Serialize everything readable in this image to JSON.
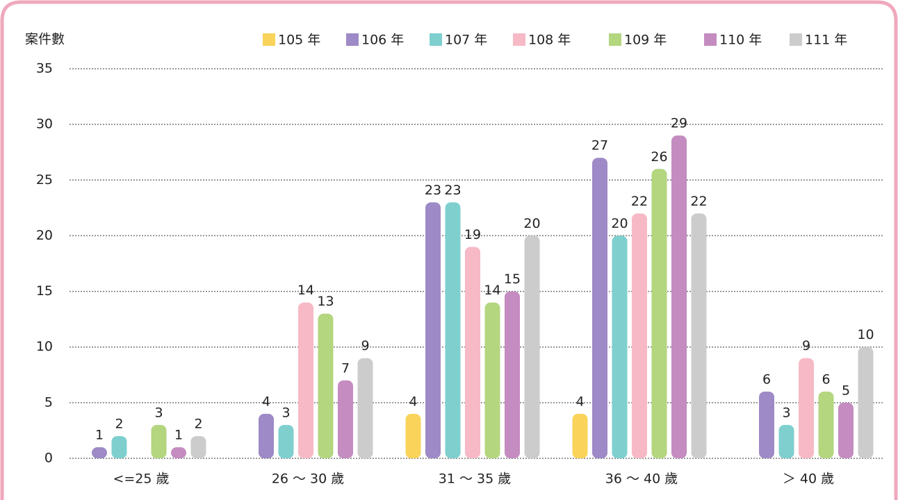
{
  "chart_data": {
    "type": "bar",
    "y_label": "案件數",
    "categories": [
      "<=25 歲",
      "26 ～ 30 歲",
      "31 ～ 35 歲",
      "36 ～ 40 歲",
      "＞ 40 歲"
    ],
    "series": [
      {
        "name": "105 年",
        "color": "#f9d35a",
        "values": [
          null,
          null,
          4,
          4,
          null
        ]
      },
      {
        "name": "106 年",
        "color": "#9d8ac6",
        "values": [
          1,
          4,
          23,
          27,
          6
        ]
      },
      {
        "name": "107 年",
        "color": "#7fcfcf",
        "values": [
          2,
          3,
          23,
          20,
          3
        ]
      },
      {
        "name": "108 年",
        "color": "#f7b9c6",
        "values": [
          null,
          14,
          19,
          22,
          9
        ]
      },
      {
        "name": "109 年",
        "color": "#b3d67f",
        "values": [
          3,
          13,
          14,
          26,
          6
        ]
      },
      {
        "name": "110 年",
        "color": "#c48cc0",
        "values": [
          1,
          7,
          15,
          29,
          5
        ]
      },
      {
        "name": "111 年",
        "color": "#cccccc",
        "values": [
          2,
          9,
          20,
          22,
          10
        ]
      }
    ],
    "ylim": [
      0,
      35
    ],
    "yticks": [
      0,
      5,
      10,
      15,
      20,
      25,
      30,
      35
    ],
    "grid": true
  }
}
